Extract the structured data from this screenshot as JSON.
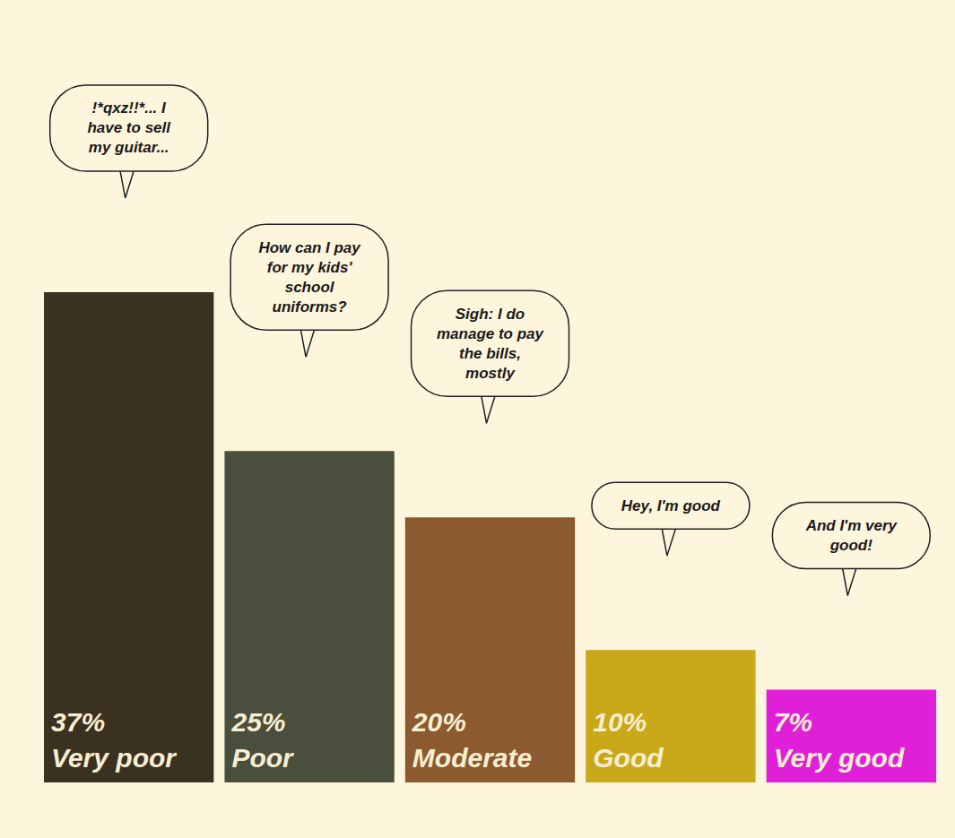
{
  "chart_data": {
    "type": "bar",
    "categories": [
      "Very poor",
      "Poor",
      "Moderate",
      "Good",
      "Very good"
    ],
    "values": [
      37,
      25,
      20,
      10,
      7
    ],
    "value_labels": [
      "37%",
      "25%",
      "20%",
      "10%",
      "7%"
    ],
    "colors": [
      "#3a3120",
      "#4a4f3d",
      "#8b5a2e",
      "#c9a81a",
      "#e01fd9"
    ],
    "data_labels": true,
    "tick_labels": false,
    "grid": false,
    "annotations": [
      {
        "text": "!*qxz!!*... I have to sell my guitar...",
        "category": "Very poor"
      },
      {
        "text": "How can I pay for my kids' school uniforms?",
        "category": "Poor"
      },
      {
        "text": "Sigh: I do manage to pay the bills, mostly",
        "category": "Moderate"
      },
      {
        "text": "Hey, I'm good",
        "category": "Good"
      },
      {
        "text": "And I'm very good!",
        "category": "Very good"
      }
    ]
  }
}
